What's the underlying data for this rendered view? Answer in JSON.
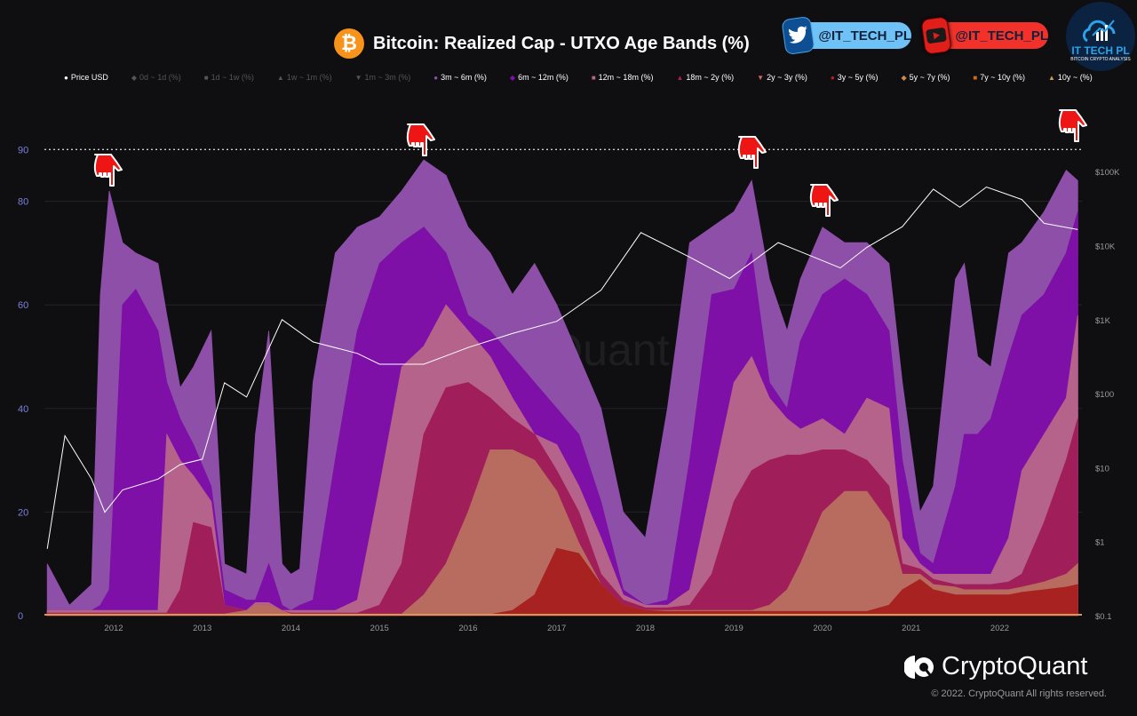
{
  "header": {
    "title": "Bitcoin: Realized Cap - UTXO Age Bands (%)",
    "twitter_handle": "@IT_TECH_PL",
    "youtube_handle": "@IT_TECH_PL",
    "logo_text": "IT TECH PL",
    "logo_subtitle": "BITCOIN CRYPTO ANALYSIS"
  },
  "legend": [
    {
      "label": "Price USD",
      "marker": "●",
      "color": "#ffffff",
      "active": true
    },
    {
      "label": "0d ~ 1d (%)",
      "marker": "◆",
      "color": "#555555",
      "active": false
    },
    {
      "label": "1d ~ 1w (%)",
      "marker": "■",
      "color": "#555555",
      "active": false
    },
    {
      "label": "1w ~ 1m (%)",
      "marker": "▲",
      "color": "#555555",
      "active": false
    },
    {
      "label": "1m ~ 3m (%)",
      "marker": "▼",
      "color": "#555555",
      "active": false
    },
    {
      "label": "3m ~ 6m (%)",
      "marker": "●",
      "color": "#8e4fa8",
      "active": true
    },
    {
      "label": "6m ~ 12m (%)",
      "marker": "◆",
      "color": "#8010b0",
      "active": true
    },
    {
      "label": "12m ~ 18m (%)",
      "marker": "■",
      "color": "#b5638a",
      "active": true
    },
    {
      "label": "18m ~ 2y (%)",
      "marker": "▲",
      "color": "#b0205e",
      "active": true
    },
    {
      "label": "2y ~ 3y (%)",
      "marker": "▼",
      "color": "#d06a60",
      "active": true
    },
    {
      "label": "3y ~ 5y (%)",
      "marker": "●",
      "color": "#c02020",
      "active": true
    },
    {
      "label": "5y ~ 7y (%)",
      "marker": "◆",
      "color": "#d08a50",
      "active": true
    },
    {
      "label": "7y ~ 10y (%)",
      "marker": "■",
      "color": "#d06a20",
      "active": true
    },
    {
      "label": "10y ~ (%)",
      "marker": "▲",
      "color": "#c0a060",
      "active": true
    }
  ],
  "chart_data": {
    "type": "area",
    "stacked": true,
    "title": "Bitcoin: Realized Cap - UTXO Age Bands (%)",
    "x": [
      2011.25,
      2011.5,
      2011.75,
      2011.85,
      2011.95,
      2012.1,
      2012.25,
      2012.5,
      2012.6,
      2012.75,
      2012.9,
      2013.1,
      2013.25,
      2013.5,
      2013.6,
      2013.75,
      2013.9,
      2014.0,
      2014.1,
      2014.25,
      2014.5,
      2014.75,
      2015.0,
      2015.25,
      2015.5,
      2015.75,
      2016.0,
      2016.25,
      2016.5,
      2016.75,
      2017.0,
      2017.25,
      2017.5,
      2017.75,
      2018.0,
      2018.25,
      2018.5,
      2018.75,
      2019.0,
      2019.2,
      2019.4,
      2019.6,
      2019.75,
      2020.0,
      2020.25,
      2020.5,
      2020.75,
      2020.9,
      2021.1,
      2021.25,
      2021.5,
      2021.6,
      2021.75,
      2021.9,
      2022.1,
      2022.25,
      2022.5,
      2022.75,
      2022.88
    ],
    "x_ticks": [
      "2012",
      "2013",
      "2014",
      "2015",
      "2016",
      "2017",
      "2018",
      "2019",
      "2020",
      "2021",
      "2022"
    ],
    "y_left_ticks": [
      "0",
      "20",
      "40",
      "60",
      "80",
      "90"
    ],
    "y_left_range": [
      0,
      100
    ],
    "y_right_ticks": [
      "$0.1",
      "$1",
      "$10",
      "$100",
      "$1K",
      "$10K",
      "$100K"
    ],
    "y_right_scale": "log",
    "y_right_range": [
      0.1,
      400000
    ],
    "reference_line": 90,
    "grid": true,
    "legend_position": "top",
    "series": [
      {
        "name": "3m ~ 6m (%)",
        "color": "#8e4fa8",
        "values": [
          10,
          2,
          6,
          62,
          82,
          72,
          70,
          68,
          58,
          44,
          48,
          55,
          10,
          8,
          35,
          55,
          10,
          8,
          9,
          45,
          70,
          75,
          77,
          82,
          88,
          85,
          75,
          70,
          62,
          68,
          60,
          50,
          40,
          20,
          15,
          40,
          72,
          75,
          78,
          84,
          65,
          55,
          65,
          75,
          72,
          72,
          68,
          45,
          20,
          25,
          65,
          68,
          50,
          48,
          70,
          72,
          78,
          86,
          84
        ]
      },
      {
        "name": "6m ~ 12m (%)",
        "color": "#7e10a8",
        "values": [
          1,
          1,
          1,
          2,
          5,
          60,
          63,
          55,
          45,
          38,
          33,
          25,
          5,
          3,
          3,
          10,
          2,
          1,
          2,
          3,
          30,
          55,
          68,
          72,
          75,
          70,
          58,
          55,
          50,
          45,
          40,
          35,
          22,
          5,
          2,
          3,
          30,
          62,
          63,
          70,
          45,
          40,
          53,
          62,
          65,
          62,
          55,
          30,
          12,
          10,
          25,
          35,
          35,
          38,
          50,
          58,
          62,
          70,
          78
        ]
      },
      {
        "name": "12m ~ 18m (%)",
        "color": "#b5638a",
        "values": [
          1,
          1,
          1,
          1,
          1,
          1,
          1,
          1,
          35,
          30,
          27,
          22,
          2,
          1,
          2.5,
          2.5,
          1,
          1,
          1,
          1,
          1,
          3,
          25,
          48,
          52,
          60,
          55,
          50,
          42,
          35,
          33,
          25,
          15,
          4,
          2,
          2,
          5,
          25,
          45,
          50,
          42,
          38,
          36,
          38,
          35,
          42,
          40,
          15,
          10,
          8,
          8,
          8,
          8,
          8,
          15,
          28,
          35,
          42,
          58
        ]
      },
      {
        "name": "18m ~ 2y (%)",
        "color": "#a01f5a",
        "values": [
          0.5,
          0.5,
          0.5,
          0.5,
          0.5,
          0.5,
          0.5,
          0.5,
          0.5,
          5,
          18,
          17,
          2,
          1,
          2,
          2,
          1,
          0.5,
          0.5,
          0.5,
          0.5,
          0.5,
          2,
          10,
          35,
          44,
          45,
          42,
          38,
          35,
          28,
          20,
          8,
          3,
          1.5,
          1.5,
          2,
          8,
          22,
          28,
          30,
          31,
          31,
          32,
          32,
          30,
          25,
          10,
          9,
          7,
          6,
          6,
          6,
          6,
          6.5,
          8,
          18,
          30,
          38
        ]
      },
      {
        "name": "2y ~ 3y (%)",
        "color": "#b86c60",
        "values": [
          0.3,
          0.3,
          0.3,
          0.3,
          0.3,
          0.3,
          0.3,
          0.3,
          0.3,
          0.3,
          0.3,
          0.3,
          0.3,
          1,
          2,
          2,
          1,
          0.3,
          0.3,
          0.3,
          0.3,
          0.3,
          0.3,
          0.3,
          4,
          10,
          20,
          32,
          32,
          30,
          24,
          14,
          6,
          2,
          1,
          1,
          1,
          1,
          1,
          1,
          2,
          5,
          10,
          20,
          24,
          24,
          18,
          8,
          8,
          6,
          5.5,
          5,
          5,
          5,
          5,
          5.5,
          6.5,
          8,
          10
        ]
      },
      {
        "name": "3y ~ 5y (%)",
        "color": "#a82222",
        "values": [
          0.2,
          0.2,
          0.2,
          0.2,
          0.2,
          0.2,
          0.2,
          0.2,
          0.2,
          0.2,
          0.2,
          0.2,
          0.2,
          0.2,
          0.2,
          0.2,
          0.2,
          0.2,
          0.2,
          0.2,
          0.2,
          0.2,
          0.2,
          0.2,
          0.2,
          0.2,
          0.2,
          0.2,
          1,
          4,
          13,
          12,
          6,
          2,
          1,
          0.8,
          0.8,
          0.8,
          0.8,
          0.8,
          0.8,
          0.8,
          0.8,
          0.8,
          0.8,
          0.8,
          2,
          5,
          7,
          5,
          4,
          4,
          4,
          4,
          4,
          4.5,
          5,
          5.5,
          6
        ]
      }
    ],
    "price_series": {
      "name": "Price USD",
      "color": "#ffffff",
      "x": [
        2011.25,
        2011.45,
        2011.75,
        2011.9,
        2012.1,
        2012.5,
        2012.75,
        2013.0,
        2013.25,
        2013.5,
        2013.9,
        2014.25,
        2014.75,
        2015.0,
        2015.5,
        2016.0,
        2016.5,
        2017.0,
        2017.5,
        2017.95,
        2018.5,
        2018.95,
        2019.5,
        2020.2,
        2020.5,
        2020.9,
        2021.25,
        2021.55,
        2021.85,
        2022.25,
        2022.5,
        2022.88
      ],
      "values": [
        0.8,
        27,
        7,
        2.5,
        5,
        7,
        11,
        13,
        140,
        90,
        1000,
        500,
        350,
        250,
        250,
        420,
        650,
        950,
        2500,
        15000,
        7000,
        3600,
        11000,
        5000,
        9500,
        18000,
        58000,
        33000,
        62000,
        42000,
        20000,
        16500
      ]
    }
  },
  "footer": {
    "brand": "CryptoQuant",
    "copyright": "© 2022. CryptoQuant All rights reserved.",
    "watermark": "CryptoQuant"
  }
}
